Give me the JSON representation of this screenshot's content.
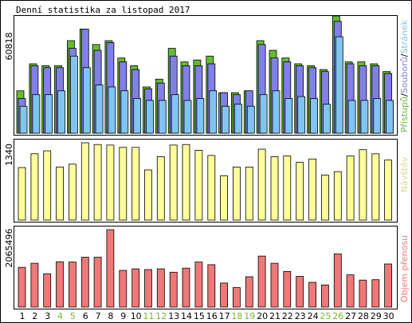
{
  "title": "Denní statistika za listopad 2017",
  "colors": {
    "background": "#ffffff",
    "frame": "#000000",
    "panel_border": "#000000",
    "hits": "#66bb33",
    "files": "#8080e8",
    "pages": "#80c4f0",
    "visits": "#ffff99",
    "kbytes": "#f07878",
    "weekend_label": "#77b733",
    "weekday_label": "#000000",
    "bar_outline": "#000000"
  },
  "panels": {
    "top": {
      "max_label": "60818",
      "legend": [
        {
          "text": "Přístupů",
          "color": "#66bb33"
        },
        {
          "text": "/",
          "color": "#000000"
        },
        {
          "text": "Souborů",
          "color": "#8080e8"
        },
        {
          "text": "/",
          "color": "#000000"
        },
        {
          "text": "Stránek",
          "color": "#80c4f0"
        }
      ]
    },
    "middle": {
      "max_label": "1340",
      "legend": [
        {
          "text": "Návštěv",
          "color": "#d8d890"
        }
      ]
    },
    "bottom": {
      "max_label": "2065496",
      "legend": [
        {
          "text": "Objem přenosu",
          "color": "#f07878"
        }
      ]
    }
  },
  "chart_data": {
    "type": "bar",
    "title": "Denní statistika za listopad 2017",
    "categories": [
      "1",
      "2",
      "3",
      "4",
      "5",
      "6",
      "7",
      "8",
      "9",
      "10",
      "11",
      "12",
      "13",
      "14",
      "15",
      "16",
      "17",
      "18",
      "19",
      "20",
      "21",
      "22",
      "23",
      "24",
      "25",
      "26",
      "27",
      "28",
      "29",
      "30"
    ],
    "weekend_days": [
      "4",
      "5",
      "11",
      "12",
      "18",
      "19",
      "25",
      "26"
    ],
    "panels": [
      {
        "name": "hits_files_pages",
        "ylim": [
          0,
          60818
        ],
        "series": [
          {
            "name": "Přístupů",
            "values": [
              22000,
              36000,
              35000,
              35000,
              48000,
              54000,
              46000,
              48000,
              39000,
              35000,
              24000,
              28000,
              44000,
              37000,
              38000,
              40000,
              21000,
              21000,
              22000,
              48000,
              43000,
              39000,
              36000,
              35000,
              33000,
              60818,
              37000,
              37000,
              36000,
              32000
            ]
          },
          {
            "name": "Souborů",
            "values": [
              18000,
              35000,
              34000,
              34000,
              44000,
              54000,
              43000,
              47000,
              37000,
              33000,
              23000,
              26000,
              40000,
              35000,
              35000,
              36000,
              21000,
              20000,
              22000,
              46000,
              39000,
              37000,
              35000,
              34000,
              32000,
              58000,
              36000,
              35000,
              35000,
              31000
            ]
          },
          {
            "name": "Stránek",
            "values": [
              14000,
              20000,
              20000,
              22000,
              40000,
              34000,
              25000,
              24000,
              22000,
              18000,
              17000,
              17000,
              20000,
              17000,
              18000,
              22000,
              14000,
              15000,
              14000,
              20000,
              22000,
              18000,
              19000,
              18000,
              15000,
              50000,
              17000,
              17000,
              18000,
              17000
            ]
          }
        ]
      },
      {
        "name": "visits",
        "ylim": [
          0,
          1340
        ],
        "series": [
          {
            "name": "Návštěv",
            "values": [
              910,
              1150,
              1200,
              920,
              970,
              1340,
              1310,
              1300,
              1260,
              1260,
              870,
              1100,
              1300,
              1310,
              1210,
              1120,
              770,
              920,
              920,
              1230,
              1100,
              1110,
              1000,
              1060,
              780,
              840,
              1110,
              1220,
              1150,
              1040
            ]
          }
        ]
      },
      {
        "name": "kbytes",
        "ylim": [
          0,
          2065496
        ],
        "series": [
          {
            "name": "Objem přenosu",
            "values": [
              1060000,
              1170000,
              890000,
              1210000,
              1200000,
              1330000,
              1330000,
              2065496,
              980000,
              1020000,
              1000000,
              1020000,
              930000,
              1040000,
              1200000,
              1130000,
              640000,
              520000,
              810000,
              1360000,
              1170000,
              950000,
              820000,
              660000,
              590000,
              1420000,
              860000,
              720000,
              730000,
              1150000
            ]
          }
        ]
      }
    ]
  }
}
